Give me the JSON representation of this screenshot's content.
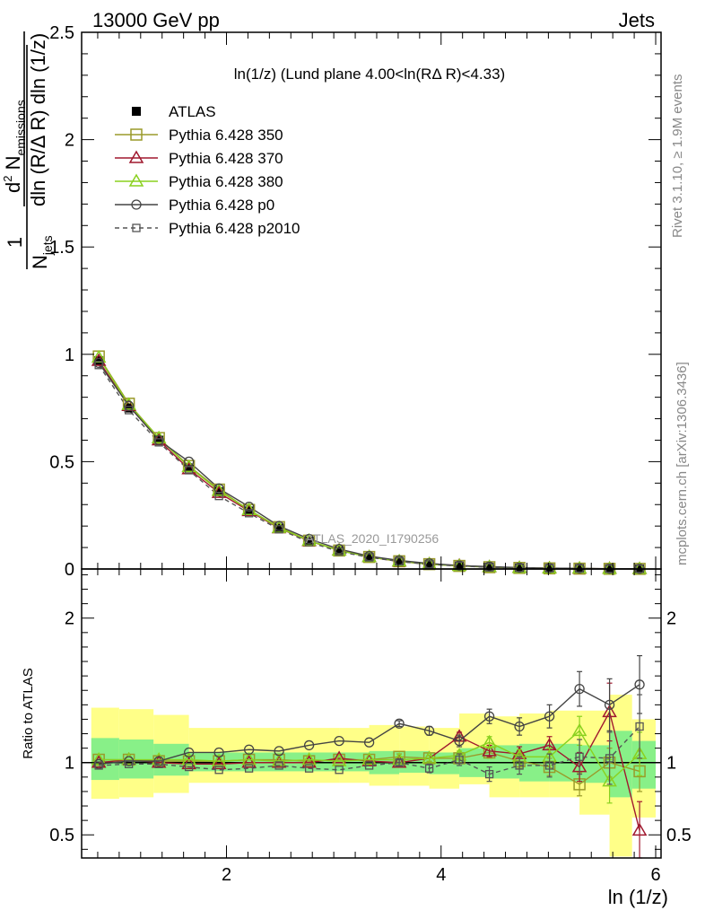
{
  "header": {
    "left": "13000 GeV pp",
    "right": "Jets"
  },
  "side_text": {
    "rivet": "Rivet 3.1.10, ≥ 1.9M events",
    "mcplots": "mcplots.cern.ch [arXiv:1306.3436]"
  },
  "watermark": "ATLAS_2020_I1790256",
  "chart_data": [
    {
      "type": "line",
      "title": "ln(1/z) (Lund plane 4.00<ln(RΔ R)<4.33)",
      "ylabel": "1/N_jets d²N_emissions / dln(R/ΔR) dln(1/z)",
      "ylabel_parts": {
        "frac": "1",
        "njets": "N",
        "njets_sub": "jets",
        "numerator": "d",
        "numerator_sup": "2",
        "numerator_rest": " N",
        "numerator_sub": "emissions",
        "denominator": "dln (R/Δ R) dln (1/z)"
      },
      "xlim": [
        0.65,
        6.05
      ],
      "ylim": [
        0,
        2.5
      ],
      "y_ticks": [
        "0",
        "0.5",
        "1",
        "1.5",
        "2",
        "2.5"
      ],
      "x": [
        0.81,
        1.09,
        1.37,
        1.65,
        1.93,
        2.21,
        2.49,
        2.77,
        3.05,
        3.33,
        3.61,
        3.89,
        4.17,
        4.45,
        4.73,
        5.01,
        5.29,
        5.57,
        5.85
      ],
      "series": [
        {
          "name": "ATLAS",
          "key": "atlas",
          "color": "#000000",
          "marker": "filled-square",
          "dash": "none",
          "values": [
            0.97,
            0.75,
            0.6,
            0.47,
            0.36,
            0.27,
            0.19,
            0.13,
            0.085,
            0.055,
            0.035,
            0.022,
            0.014,
            0.008,
            0.005,
            0.003,
            0.002,
            0.001,
            0.0006
          ]
        },
        {
          "name": "Pythia 6.428 350",
          "key": "p350",
          "color": "#9a9a2a",
          "marker": "open-square",
          "dash": "none",
          "values": [
            0.99,
            0.77,
            0.61,
            0.48,
            0.37,
            0.275,
            0.195,
            0.132,
            0.086,
            0.056,
            0.036,
            0.0225,
            0.0143,
            0.0084,
            0.005,
            0.0029,
            0.0017,
            0.0009,
            0.0006
          ]
        },
        {
          "name": "Pythia 6.428 370",
          "key": "p370",
          "color": "#a0182e",
          "marker": "open-triangle",
          "dash": "none",
          "values": [
            0.97,
            0.76,
            0.6,
            0.465,
            0.355,
            0.27,
            0.19,
            0.13,
            0.087,
            0.056,
            0.035,
            0.0225,
            0.0163,
            0.0088,
            0.0055,
            0.0034,
            0.0019,
            0.0014,
            0.0003
          ]
        },
        {
          "name": "Pythia 6.428 380",
          "key": "p380",
          "color": "#8ad11f",
          "marker": "open-triangle",
          "dash": "none",
          "values": [
            0.985,
            0.765,
            0.61,
            0.475,
            0.365,
            0.275,
            0.192,
            0.132,
            0.086,
            0.056,
            0.036,
            0.0225,
            0.0148,
            0.0092,
            0.0052,
            0.0031,
            0.0024,
            0.0009,
            0.0006
          ]
        },
        {
          "name": "Pythia 6.428 p0",
          "key": "p0",
          "color": "#444444",
          "marker": "open-circle",
          "dash": "none",
          "values": [
            0.96,
            0.76,
            0.6,
            0.5,
            0.375,
            0.29,
            0.2,
            0.14,
            0.093,
            0.06,
            0.04,
            0.026,
            0.016,
            0.011,
            0.0063,
            0.0041,
            0.0029,
            0.0014,
            0.0009
          ]
        },
        {
          "name": "Pythia 6.428 p2010",
          "key": "p2010",
          "color": "#555555",
          "marker": "open-square-small",
          "dash": "5,4",
          "values": [
            0.95,
            0.74,
            0.59,
            0.46,
            0.34,
            0.26,
            0.185,
            0.125,
            0.081,
            0.054,
            0.035,
            0.021,
            0.0143,
            0.0074,
            0.0049,
            0.0029,
            0.0021,
            0.001,
            0.0008
          ]
        }
      ],
      "legend_position": "top-left"
    },
    {
      "type": "line",
      "xlabel": "ln (1/z)",
      "ylabel": "Ratio to ATLAS",
      "xlim": [
        0.65,
        6.05
      ],
      "ylim": [
        0.34,
        2.34
      ],
      "x_ticks": [
        "2",
        "4",
        "6"
      ],
      "y_ticks": [
        "0.5",
        "1",
        "2"
      ],
      "x": [
        0.81,
        1.09,
        1.37,
        1.65,
        1.93,
        2.21,
        2.49,
        2.77,
        3.05,
        3.33,
        3.61,
        3.89,
        4.17,
        4.45,
        4.73,
        5.01,
        5.29,
        5.57,
        5.85
      ],
      "band_edges": [
        0.74,
        1.0,
        1.32,
        1.65,
        3.05,
        3.33,
        3.61,
        3.89,
        4.17,
        4.45,
        4.73,
        5.01,
        5.29,
        5.57,
        5.78,
        6.0
      ],
      "band_inner": [
        [
          0.88,
          1.17
        ],
        [
          0.89,
          1.16
        ],
        [
          0.91,
          1.13
        ],
        [
          0.94,
          1.07
        ],
        [
          0.94,
          1.07
        ],
        [
          0.92,
          1.08
        ],
        [
          0.93,
          1.08
        ],
        [
          0.92,
          1.07
        ],
        [
          0.9,
          1.1
        ],
        [
          0.89,
          1.12
        ],
        [
          0.87,
          1.13
        ],
        [
          0.87,
          1.13
        ],
        [
          0.86,
          1.12
        ],
        [
          0.76,
          1.22
        ],
        [
          0.82,
          1.15
        ]
      ],
      "band_outer": [
        [
          0.75,
          1.38
        ],
        [
          0.76,
          1.37
        ],
        [
          0.79,
          1.33
        ],
        [
          0.86,
          1.24
        ],
        [
          0.86,
          1.24
        ],
        [
          0.84,
          1.26
        ],
        [
          0.84,
          1.25
        ],
        [
          0.82,
          1.24
        ],
        [
          0.85,
          1.34
        ],
        [
          0.76,
          1.32
        ],
        [
          0.76,
          1.34
        ],
        [
          0.76,
          1.36
        ],
        [
          0.64,
          1.36
        ],
        [
          0.35,
          1.47
        ],
        [
          0.62,
          1.3
        ]
      ],
      "series": [
        {
          "name": "Pythia 6.428 350",
          "key": "p350",
          "color": "#9a9a2a",
          "marker": "open-square",
          "dash": "none",
          "values": [
            1.02,
            1.02,
            1.01,
            1.01,
            1.01,
            1.02,
            1.02,
            1.01,
            1.02,
            1.02,
            1.04,
            1.03,
            1.03,
            1.07,
            1.01,
            0.97,
            0.85,
            1.0,
            0.94
          ],
          "errors": [
            0.005,
            0.005,
            0.005,
            0.005,
            0.005,
            0.005,
            0.005,
            0.005,
            0.01,
            0.01,
            0.02,
            0.02,
            0.03,
            0.04,
            0.05,
            0.06,
            0.08,
            0.1,
            0.14
          ]
        },
        {
          "name": "Pythia 6.428 370",
          "key": "p370",
          "color": "#a0182e",
          "marker": "open-triangle",
          "dash": "none",
          "values": [
            1.0,
            1.02,
            1.0,
            0.99,
            0.99,
            1.0,
            1.0,
            1.0,
            1.03,
            1.01,
            1.0,
            1.03,
            1.18,
            1.08,
            1.06,
            1.12,
            0.97,
            1.35,
            0.53
          ],
          "errors": [
            0.005,
            0.005,
            0.005,
            0.005,
            0.005,
            0.005,
            0.005,
            0.005,
            0.01,
            0.01,
            0.02,
            0.02,
            0.03,
            0.04,
            0.05,
            0.06,
            0.1,
            0.2,
            0.2
          ]
        },
        {
          "name": "Pythia 6.428 380",
          "key": "p380",
          "color": "#8ad11f",
          "marker": "open-triangle",
          "dash": "none",
          "values": [
            1.02,
            1.02,
            1.02,
            1.02,
            1.01,
            1.02,
            1.01,
            1.02,
            1.01,
            1.02,
            1.02,
            1.03,
            1.05,
            1.14,
            1.04,
            1.04,
            1.22,
            0.87,
            1.06
          ],
          "errors": [
            0.005,
            0.005,
            0.005,
            0.005,
            0.005,
            0.005,
            0.005,
            0.005,
            0.01,
            0.01,
            0.02,
            0.02,
            0.03,
            0.04,
            0.05,
            0.06,
            0.1,
            0.15,
            0.15
          ]
        },
        {
          "name": "Pythia 6.428 p0",
          "key": "p0",
          "color": "#444444",
          "marker": "open-circle",
          "dash": "none",
          "values": [
            0.99,
            1.01,
            1.01,
            1.07,
            1.07,
            1.09,
            1.08,
            1.12,
            1.15,
            1.14,
            1.27,
            1.22,
            1.15,
            1.32,
            1.25,
            1.32,
            1.51,
            1.4,
            1.54
          ],
          "errors": [
            0.005,
            0.005,
            0.005,
            0.005,
            0.005,
            0.005,
            0.005,
            0.005,
            0.01,
            0.01,
            0.02,
            0.03,
            0.04,
            0.05,
            0.06,
            0.08,
            0.12,
            0.18,
            0.2
          ]
        },
        {
          "name": "Pythia 6.428 p2010",
          "key": "p2010",
          "color": "#555555",
          "marker": "open-square-small",
          "dash": "5,4",
          "values": [
            0.98,
            0.99,
            0.99,
            0.97,
            0.95,
            0.96,
            0.98,
            0.96,
            0.95,
            0.98,
            1.0,
            0.96,
            1.02,
            0.92,
            0.98,
            0.98,
            1.04,
            1.03,
            1.25
          ],
          "errors": [
            0.005,
            0.005,
            0.005,
            0.005,
            0.005,
            0.005,
            0.005,
            0.005,
            0.01,
            0.01,
            0.02,
            0.03,
            0.04,
            0.05,
            0.06,
            0.08,
            0.12,
            0.18,
            0.22
          ]
        }
      ]
    }
  ],
  "colors": {
    "band_inner": "#88f088",
    "band_outer": "#ffff88",
    "axis": "#000000",
    "side_text": "#888888"
  }
}
